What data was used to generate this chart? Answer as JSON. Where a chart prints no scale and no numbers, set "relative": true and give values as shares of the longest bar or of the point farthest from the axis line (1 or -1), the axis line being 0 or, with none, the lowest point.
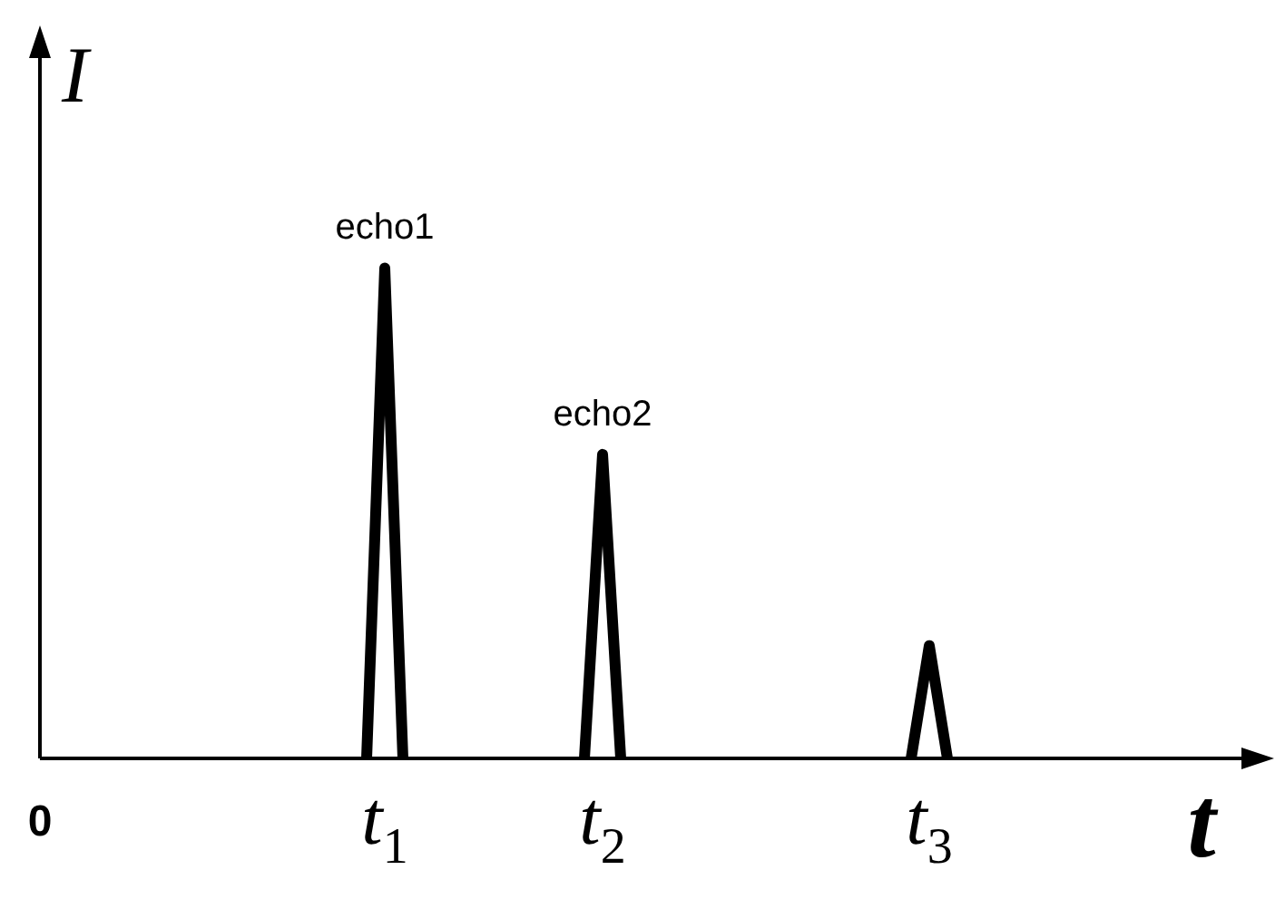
{
  "chart_data": {
    "type": "line",
    "relative": true,
    "xlabel": "t",
    "ylabel": "I",
    "categories": [
      "0",
      null,
      null,
      null,
      null,
      null,
      null,
      null,
      null,
      null,
      null,
      null,
      null,
      null,
      null,
      null,
      null,
      null,
      null,
      "t$_{1}$",
      null,
      null,
      null,
      null,
      null,
      null,
      null,
      null,
      null,
      null,
      null,
      "t$_{2}$",
      null,
      null,
      null,
      null,
      null,
      null,
      null,
      null,
      null,
      null,
      null,
      null,
      null,
      null,
      null,
      null,
      null,
      "t$_{3}$",
      null,
      null,
      null,
      null,
      null,
      null,
      null,
      null,
      null,
      null,
      null,
      null,
      null,
      null,
      null,
      null,
      null,
      null,
      null
    ],
    "series": [
      {
        "color": "#000000",
        "values": [
          null,
          null,
          null,
          null,
          null,
          null,
          null,
          null,
          null,
          null,
          null,
          null,
          null,
          null,
          null,
          null,
          null,
          null,
          0,
          1,
          0,
          null,
          null,
          null,
          null,
          null,
          null,
          null,
          null,
          null,
          0,
          0.62,
          0,
          null,
          null,
          null,
          null,
          null,
          null,
          null,
          null,
          null,
          null,
          null,
          null,
          null,
          null,
          null,
          0,
          0.23,
          0,
          null,
          null,
          null,
          null,
          null,
          null,
          null,
          null,
          null,
          null,
          null,
          null,
          null,
          null,
          null,
          null,
          null,
          null
        ]
      }
    ],
    "annotations": [
      {
        "text": "echo1",
        "x": "t$_{1}$",
        "y": 1
      },
      {
        "text": "echo2",
        "x": "t$_{2}$",
        "y": 0.62
      }
    ],
    "marker": "none",
    "line_style": "solid"
  }
}
